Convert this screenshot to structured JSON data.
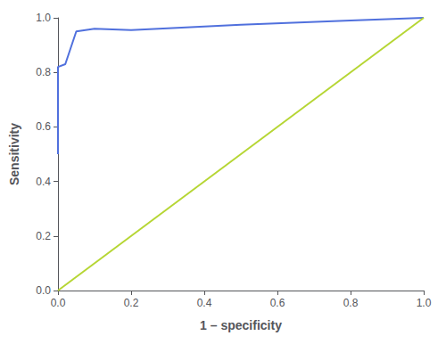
{
  "chart_data": {
    "type": "line",
    "xlabel": "1 – specificity",
    "ylabel": "Sensitivity",
    "series": [
      {
        "x": [
          0.0,
          0.0,
          0.02,
          0.05,
          0.1,
          0.2,
          0.5,
          0.8,
          1.0
        ],
        "values": [
          0.5,
          0.82,
          0.83,
          0.95,
          0.96,
          0.955,
          0.975,
          0.99,
          1.0
        ]
      },
      {
        "x": [
          0.0,
          1.0
        ],
        "values": [
          0.0,
          1.0
        ]
      }
    ],
    "xlim": [
      0.0,
      1.0
    ],
    "ylim": [
      0.0,
      1.0
    ],
    "xticks": [
      {
        "value": 0.0,
        "label": "0.0"
      },
      0.2,
      0.4,
      0.6,
      0.8,
      {
        "value": 1.0,
        "label": "1.0"
      }
    ],
    "yticks": [
      {
        "value": 0.0,
        "label": "0.0"
      },
      0.2,
      0.4,
      0.6,
      0.8,
      {
        "value": 1.0,
        "label": "1.0"
      }
    ],
    "grid": false
  }
}
